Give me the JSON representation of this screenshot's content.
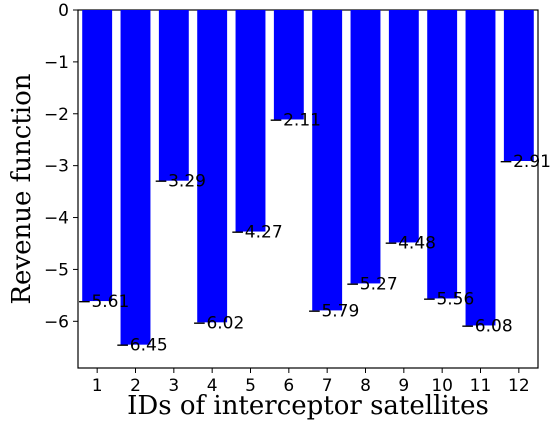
{
  "chart_data": {
    "type": "bar",
    "categories": [
      "1",
      "2",
      "3",
      "4",
      "5",
      "6",
      "7",
      "8",
      "9",
      "10",
      "11",
      "12"
    ],
    "values": [
      -5.61,
      -6.45,
      -3.29,
      -6.02,
      -4.27,
      -2.11,
      -5.79,
      -5.27,
      -4.48,
      -5.56,
      -6.08,
      -2.91
    ],
    "data_labels": [
      "−5.61",
      "−6.45",
      "−3.29",
      "−6.02",
      "−4.27",
      "−2.11",
      "−5.79",
      "−5.27",
      "−4.48",
      "−5.56",
      "−6.08",
      "−2.91"
    ],
    "xlabel": "IDs of interceptor satellites",
    "ylabel": "Revenue function",
    "ylim": [
      -6.9,
      0
    ],
    "yticks": [
      0,
      -1,
      -2,
      -3,
      -4,
      -5,
      -6
    ],
    "ytick_labels": [
      "0",
      "−1",
      "−2",
      "−3",
      "−4",
      "−5",
      "−6"
    ],
    "grid": false,
    "bar_color": "#0000ff"
  }
}
